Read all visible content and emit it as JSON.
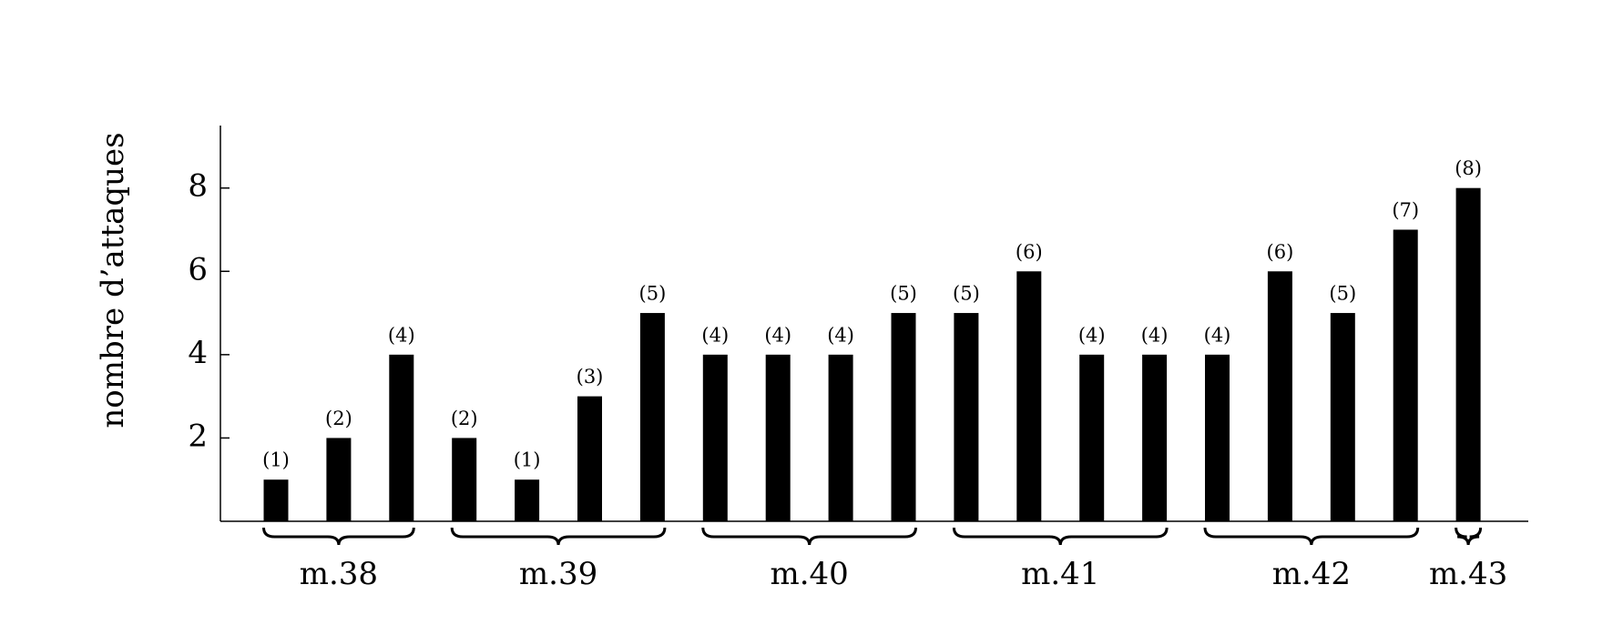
{
  "chart_data": {
    "type": "bar",
    "y_label": "nombre d’attaques",
    "color": "#000000",
    "groups": [
      {
        "label": "m.38",
        "values": [
          1,
          2,
          4
        ],
        "value_labels": [
          "(1)",
          "(2)",
          "(4)"
        ]
      },
      {
        "label": "m.39",
        "values": [
          2,
          1,
          3,
          5
        ],
        "value_labels": [
          "(2)",
          "(1)",
          "(3)",
          "(5)"
        ]
      },
      {
        "label": "m.40",
        "values": [
          4,
          4,
          4,
          5
        ],
        "value_labels": [
          "(4)",
          "(4)",
          "(4)",
          "(5)"
        ]
      },
      {
        "label": "m.41",
        "values": [
          5,
          6,
          4,
          4
        ],
        "value_labels": [
          "(5)",
          "(6)",
          "(4)",
          "(4)"
        ]
      },
      {
        "label": "m.42",
        "values": [
          4,
          6,
          5,
          7
        ],
        "value_labels": [
          "(4)",
          "(6)",
          "(5)",
          "(7)"
        ]
      },
      {
        "label": "m.43",
        "values": [
          8
        ],
        "value_labels": [
          "(8)"
        ]
      }
    ],
    "ylim": [
      0,
      9.5
    ],
    "yticks": [
      2,
      4,
      6,
      8
    ]
  }
}
